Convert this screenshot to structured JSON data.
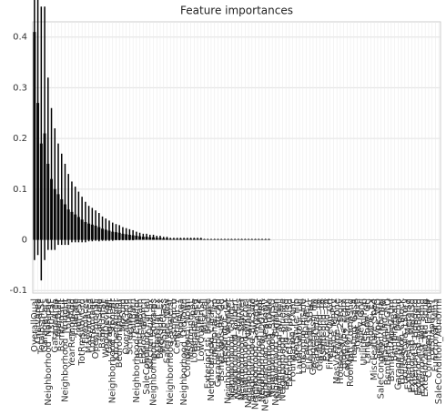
{
  "chart_data": {
    "type": "bar",
    "title": "Feature importances",
    "categories": [
      "OverallQual",
      "GrLivArea",
      "TotalBsmtSF",
      "GarageCars",
      "Neighborhood_NoRidge",
      "1stFlrSF",
      "GarageArea",
      "YearBuilt",
      "BsmtFinSF1",
      "Neighborhood_NridgHt",
      "LotArea",
      "YearRemodAdd",
      "FullBath",
      "2ndFlrSF",
      "TotRmsAbvGrd",
      "Fireplaces",
      "MasVnrArea",
      "LotFrontage",
      "OpenPorchSF",
      "YearsSold",
      "BsmtUnfSF",
      "WoodDeckSF",
      "GarageYrBlt",
      "Neighborhood_StoneBr",
      "KitchenAbvGr",
      "BedroomAbvGr",
      "MoSold",
      "OverallCond",
      "ScreenPorch",
      "HalfBath",
      "Neighborhood_Crawfor",
      "BsmtFullBath",
      "EnclosedPorch",
      "SaleCondition_Partial",
      "KitchenQual_Ex",
      "Neighborhood_Edwards",
      "ExterQual_Ex",
      "BsmtQual_Ex",
      "MSSubClass",
      "SaleType_New",
      "Neighborhood_Somerst",
      "3SsnPorch",
      "CentralAir_Y",
      "PoolArea",
      "Neighborhood_OldTown",
      "Condition1_Norm",
      "MSZoning_RL",
      "LotShape_Reg",
      "BsmtFinSF2",
      "LowQualFinSF",
      "MiscVal",
      "Exterior1st_BrkFace",
      "Neighborhood_ClearCr",
      "Functional_Typ",
      "GarageType_Attchd",
      "BsmtExposure_Gd",
      "HeatingQC_Ex",
      "Neighborhood_Veenker",
      "Neighborhood_CollgCr",
      "Neighborhood_Gilbert",
      "Neighborhood_NAmes",
      "Neighborhood_Sawyer",
      "Neighborhood_Mitchel",
      "Neighborhood_NWAmes",
      "Neighborhood_BrkSide",
      "Neighborhood_SawyerW",
      "Neighborhood_Timber",
      "Neighborhood_IDOTRR",
      "Neighborhood_MeadowV",
      "Neighborhood_BrDale",
      "Neighborhood_SWISU",
      "Neighborhood_Blmngtn",
      "Neighborhood_NPkVill",
      "Neighborhood_Blueste",
      "Exterior2nd_VinylSd",
      "Exterior1st_VinylSd",
      "Foundation_PConc",
      "RoofStyle_Hip",
      "LandContour_Lvl",
      "LotConfig_Inside",
      "PavedDrive_Y",
      "Electrical_SBrkr",
      "GarageFinish_Fin",
      "GarageQual_TA",
      "GarageCond_TA",
      "BsmtCond_TA",
      "ExterCond_TA",
      "FireplaceQu_Gd",
      "Fence_MnPrv",
      "MasVnrType_Stone",
      "HouseStyle_2Story",
      "BldgType_1Fam",
      "Condition2_Norm",
      "RoofMatl_CompShg",
      "Heating_GasA",
      "Street_Pave",
      "Alley_Grvl",
      "Utilities_AllPub",
      "LandSlope_Gtl",
      "PoolQC_Ex",
      "MiscFeature_Shed",
      "SaleType_WD",
      "SaleCondition_Normal",
      "MSZoning_RM",
      "BsmtFinType1_GLQ",
      "BsmtFinType2_Unf",
      "BsmtHalfBath",
      "GarageType_Detchd",
      "Foundation_CBlock",
      "HouseStyle_1Story",
      "Exterior1st_MetalSd",
      "Exterior2nd_MetalSd",
      "Exterior1st_HdBoard",
      "Exterior2nd_HdBoard",
      "Exterior1st_Wd Sdng",
      "Exterior2nd_Wd Sdng",
      "Condition1_Feedr",
      "LotShape_IR1",
      "Functional_Min1",
      "SaleCondition_Abnorml"
    ],
    "values": [
      0.41,
      0.27,
      0.19,
      0.21,
      0.15,
      0.12,
      0.1,
      0.09,
      0.08,
      0.07,
      0.06,
      0.055,
      0.05,
      0.045,
      0.04,
      0.035,
      0.032,
      0.03,
      0.028,
      0.025,
      0.022,
      0.02,
      0.018,
      0.016,
      0.015,
      0.014,
      0.012,
      0.011,
      0.01,
      0.009,
      0.008,
      0.007,
      0.006,
      0.006,
      0.005,
      0.005,
      0.004,
      0.004,
      0.003,
      0.003,
      0.002,
      0.002,
      0.002,
      0.002,
      0.002,
      0.002,
      0.002,
      0.002,
      0.002,
      0.002,
      0.001,
      0.001,
      0.001,
      0.001,
      0.001,
      0.001,
      0.001,
      0.001,
      0.001,
      0.001,
      0.001,
      0.001,
      0.001,
      0.001,
      0.001,
      0.001,
      0.001,
      0.001,
      0.001,
      0.001,
      0,
      0,
      0,
      0,
      0,
      0,
      0,
      0,
      0,
      0,
      0,
      0,
      0,
      0,
      0,
      0,
      0,
      0,
      0,
      0,
      0,
      0,
      0,
      0,
      0,
      0,
      0,
      0,
      0,
      0,
      0,
      0,
      0,
      0,
      0,
      0,
      0,
      0,
      0,
      0,
      0,
      0,
      0,
      0,
      0,
      0,
      0,
      0,
      0,
      0
    ],
    "errors": [
      0.45,
      0.3,
      0.27,
      0.25,
      0.17,
      0.14,
      0.12,
      0.1,
      0.09,
      0.08,
      0.07,
      0.06,
      0.055,
      0.05,
      0.045,
      0.04,
      0.035,
      0.033,
      0.03,
      0.028,
      0.024,
      0.022,
      0.02,
      0.018,
      0.016,
      0.015,
      0.013,
      0.012,
      0.011,
      0.01,
      0.008,
      0.007,
      0.006,
      0.006,
      0.005,
      0.005,
      0.004,
      0.004,
      0.003,
      0.003,
      0.002,
      0.002,
      0.002,
      0.002,
      0.002,
      0.002,
      0.002,
      0.002,
      0.002,
      0.002,
      0.001,
      0.001,
      0.001,
      0.001,
      0.001,
      0.001,
      0.001,
      0.001,
      0.001,
      0.001,
      0.001,
      0.001,
      0.001,
      0.001,
      0.001,
      0.001,
      0.001,
      0.001,
      0.001,
      0.001,
      0,
      0,
      0,
      0,
      0,
      0,
      0,
      0,
      0,
      0,
      0,
      0,
      0,
      0,
      0,
      0,
      0,
      0,
      0,
      0,
      0,
      0,
      0,
      0,
      0,
      0,
      0,
      0,
      0,
      0,
      0,
      0,
      0,
      0,
      0,
      0,
      0,
      0,
      0,
      0,
      0,
      0,
      0,
      0,
      0,
      0,
      0,
      0,
      0,
      0
    ],
    "color": "#1a1a1a",
    "error_color": "#000000",
    "ylim": [
      -0.105,
      0.43
    ],
    "yticks": [
      -0.1,
      0.0,
      0.1,
      0.2,
      0.3,
      0.4
    ],
    "grid": true
  }
}
